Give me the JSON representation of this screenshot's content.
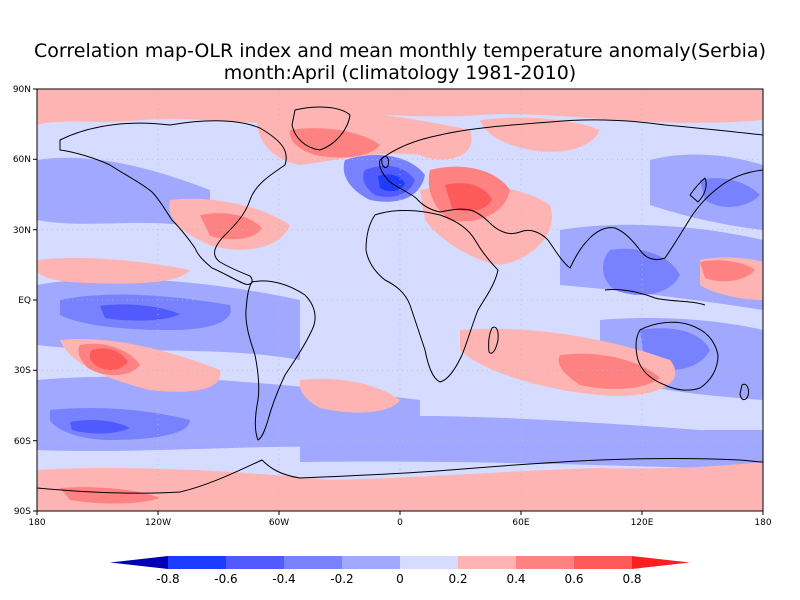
{
  "title_line1": "Correlation map-OLR index and mean monthly temperature anomaly(Serbia)",
  "title_line2": "month:April (climatology 1981-2010)",
  "lat_labels": [
    "90N",
    "60N",
    "30N",
    "EQ",
    "30S",
    "60S",
    "90S"
  ],
  "lon_labels": [
    "180",
    "120W",
    "60W",
    "0",
    "60E",
    "120E",
    "180"
  ],
  "colorbar": {
    "tick_labels": [
      "-0.8",
      "-0.6",
      "-0.4",
      "-0.2",
      "0",
      "0.2",
      "0.4",
      "0.6",
      "0.8"
    ],
    "colors": [
      "#0000b4",
      "#1e3cff",
      "#505aff",
      "#7882ff",
      "#a0a8ff",
      "#d6dcff",
      "#ffb4b4",
      "#ff8282",
      "#ff5a5a",
      "#ff1e1e"
    ]
  }
}
